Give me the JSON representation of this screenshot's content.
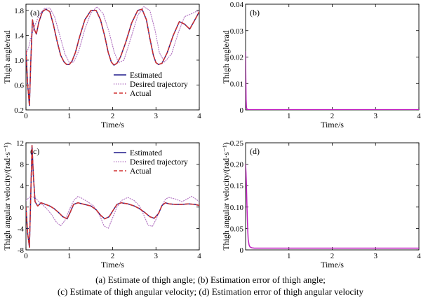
{
  "chart_data": [
    {
      "type": "line",
      "panel_label": "(a)",
      "xlabel": "Time/s",
      "ylabel": "Thigh angle/rad",
      "xlim": [
        0,
        4
      ],
      "ylim": [
        0.2,
        1.9
      ],
      "xticks": [
        "0",
        "1",
        "2",
        "3",
        "4"
      ],
      "yticks": [
        "0.2",
        "0.6",
        "1.0",
        "1.4",
        "1.8"
      ],
      "legend": "lower-right",
      "legend_entries": [
        "Estimated",
        "Desired trajectory",
        "Actual"
      ],
      "series": [
        {
          "name": "Estimated",
          "color": "#1f1a8a",
          "dash": "solid",
          "x": [
            0,
            0.04,
            0.08,
            0.11,
            0.15,
            0.19,
            0.24,
            0.3,
            0.38,
            0.46,
            0.55,
            0.63,
            0.72,
            0.8,
            0.88,
            0.94,
            1.0,
            1.06,
            1.14,
            1.24,
            1.36,
            1.5,
            1.62,
            1.72,
            1.82,
            1.9,
            1.97,
            2.03,
            2.1,
            2.18,
            2.3,
            2.44,
            2.58,
            2.68,
            2.78,
            2.86,
            2.94,
            3.0,
            3.06,
            3.14,
            3.26,
            3.4,
            3.54,
            3.66,
            3.78,
            3.9,
            4.0
          ],
          "y": [
            1.15,
            0.6,
            0.27,
            0.95,
            1.65,
            1.5,
            1.42,
            1.62,
            1.78,
            1.82,
            1.78,
            1.58,
            1.3,
            1.08,
            0.97,
            0.93,
            0.93,
            0.98,
            1.12,
            1.38,
            1.65,
            1.8,
            1.8,
            1.65,
            1.38,
            1.12,
            0.97,
            0.92,
            0.95,
            1.05,
            1.28,
            1.6,
            1.8,
            1.82,
            1.65,
            1.35,
            1.08,
            0.96,
            0.93,
            0.95,
            1.12,
            1.4,
            1.62,
            1.58,
            1.5,
            1.65,
            1.78
          ]
        },
        {
          "name": "Desired trajectory",
          "color": "#b070c0",
          "dash": "dotted",
          "x": [
            0,
            0.06,
            0.12,
            0.2,
            0.3,
            0.42,
            0.55,
            0.66,
            0.78,
            0.9,
            1.0,
            1.1,
            1.22,
            1.36,
            1.5,
            1.64,
            1.78,
            1.92,
            2.04,
            2.14,
            2.26,
            2.42,
            2.58,
            2.72,
            2.86,
            2.98,
            3.08,
            3.2,
            3.36,
            3.52,
            3.66,
            3.8,
            3.92,
            4.0
          ],
          "y": [
            1.1,
            1.2,
            1.38,
            1.55,
            1.72,
            1.83,
            1.84,
            1.7,
            1.4,
            1.1,
            0.96,
            0.97,
            1.15,
            1.5,
            1.76,
            1.86,
            1.75,
            1.45,
            1.12,
            0.96,
            1.0,
            1.35,
            1.72,
            1.86,
            1.8,
            1.48,
            1.12,
            0.97,
            1.1,
            1.45,
            1.7,
            1.74,
            1.78,
            1.8
          ]
        },
        {
          "name": "Actual",
          "color": "#d03030",
          "dash": "dashed",
          "x": [
            0,
            0.04,
            0.08,
            0.11,
            0.15,
            0.19,
            0.24,
            0.3,
            0.38,
            0.46,
            0.55,
            0.63,
            0.72,
            0.8,
            0.88,
            0.94,
            1.0,
            1.06,
            1.14,
            1.24,
            1.36,
            1.5,
            1.62,
            1.72,
            1.82,
            1.9,
            1.97,
            2.03,
            2.1,
            2.18,
            2.3,
            2.44,
            2.58,
            2.68,
            2.78,
            2.86,
            2.94,
            3.0,
            3.06,
            3.14,
            3.26,
            3.4,
            3.54,
            3.66,
            3.78,
            3.9,
            4.0
          ],
          "y": [
            1.15,
            0.6,
            0.27,
            0.95,
            1.65,
            1.5,
            1.42,
            1.62,
            1.78,
            1.82,
            1.78,
            1.58,
            1.3,
            1.08,
            0.97,
            0.93,
            0.93,
            0.98,
            1.12,
            1.38,
            1.65,
            1.8,
            1.8,
            1.65,
            1.38,
            1.12,
            0.97,
            0.92,
            0.95,
            1.05,
            1.28,
            1.6,
            1.8,
            1.82,
            1.65,
            1.35,
            1.08,
            0.96,
            0.93,
            0.95,
            1.12,
            1.4,
            1.62,
            1.58,
            1.5,
            1.65,
            1.78
          ]
        }
      ]
    },
    {
      "type": "line",
      "panel_label": "(b)",
      "xlabel": "Time/s",
      "ylabel": "Thigh angle/rad",
      "xlim": [
        0,
        4
      ],
      "ylim": [
        0,
        0.04
      ],
      "xticks": [
        "1",
        "2",
        "3",
        "4"
      ],
      "yticks": [
        "0",
        "0.01",
        "0.02",
        "0.03",
        "0.04"
      ],
      "series": [
        {
          "color": "#c020c0",
          "dash": "solid",
          "x": [
            0,
            0.006,
            0.012,
            0.02,
            0.04,
            1,
            2,
            3,
            4
          ],
          "y": [
            0.022,
            0.012,
            0.004,
            0.0008,
            0.0001,
            0.0001,
            0.0001,
            0.0001,
            0.0001
          ]
        }
      ]
    },
    {
      "type": "line",
      "panel_label": "(c)",
      "xlabel": "Time/s",
      "ylabel": "Thigh angular velocity/(rad·s⁻¹)",
      "xlim": [
        0,
        4
      ],
      "ylim": [
        -8,
        12
      ],
      "xticks": [
        "0",
        "1",
        "2",
        "3",
        "4"
      ],
      "yticks": [
        "-8",
        "-4",
        "0",
        "4",
        "8",
        "12"
      ],
      "legend": "upper-right",
      "legend_entries": [
        "Estimated",
        "Desired trajectory",
        "Actual"
      ],
      "series": [
        {
          "name": "Estimated",
          "color": "#1f1a8a",
          "dash": "solid",
          "x": [
            0,
            0.04,
            0.08,
            0.11,
            0.14,
            0.17,
            0.21,
            0.27,
            0.35,
            0.45,
            0.55,
            0.65,
            0.75,
            0.85,
            0.95,
            1.02,
            1.1,
            1.2,
            1.35,
            1.5,
            1.62,
            1.72,
            1.82,
            1.92,
            2.02,
            2.1,
            2.2,
            2.35,
            2.5,
            2.62,
            2.74,
            2.86,
            2.96,
            3.06,
            3.14,
            3.22,
            3.3,
            3.45,
            3.6,
            3.75,
            3.9,
            4.0
          ],
          "y": [
            0,
            -5,
            -7.5,
            2,
            11.5,
            6,
            1,
            0.2,
            0.8,
            0.5,
            0.2,
            -0.3,
            -1,
            -1.8,
            -2.2,
            -1,
            0.5,
            0.8,
            0.5,
            0.2,
            -0.5,
            -1.5,
            -2.2,
            -1.8,
            -0.5,
            0.5,
            0.8,
            0.6,
            0.2,
            -0.3,
            -1,
            -1.8,
            -2.1,
            -1.2,
            0.3,
            0.8,
            0.6,
            0.5,
            0.5,
            0.6,
            0.5,
            0.3
          ]
        },
        {
          "name": "Desired trajectory",
          "color": "#b070c0",
          "dash": "dotted",
          "x": [
            0,
            0.1,
            0.2,
            0.3,
            0.4,
            0.5,
            0.6,
            0.7,
            0.8,
            0.9,
            1.0,
            1.1,
            1.2,
            1.3,
            1.42,
            1.55,
            1.7,
            1.8,
            1.9,
            2.0,
            2.1,
            2.2,
            2.35,
            2.5,
            2.62,
            2.72,
            2.82,
            2.92,
            3.02,
            3.12,
            3.22,
            3.3,
            3.45,
            3.6,
            3.72,
            3.82,
            3.92,
            4.0
          ],
          "y": [
            1.2,
            2,
            1.8,
            1,
            0.3,
            -0.5,
            -1.5,
            -2.8,
            -3.5,
            -2.5,
            -0.5,
            1.2,
            2,
            1.6,
            1,
            0.3,
            -1.5,
            -3.5,
            -4,
            -2,
            0,
            1.2,
            1.8,
            1.2,
            0.2,
            -1.5,
            -3.4,
            -3.6,
            -2,
            0,
            1.5,
            1.8,
            1.5,
            1,
            1.5,
            2,
            1.5,
            1
          ]
        },
        {
          "name": "Actual",
          "color": "#d03030",
          "dash": "dashed",
          "x": [
            0,
            0.04,
            0.08,
            0.11,
            0.14,
            0.17,
            0.21,
            0.27,
            0.35,
            0.45,
            0.55,
            0.65,
            0.75,
            0.85,
            0.95,
            1.02,
            1.1,
            1.2,
            1.35,
            1.5,
            1.62,
            1.72,
            1.82,
            1.92,
            2.02,
            2.1,
            2.2,
            2.35,
            2.5,
            2.62,
            2.74,
            2.86,
            2.96,
            3.06,
            3.14,
            3.22,
            3.3,
            3.45,
            3.6,
            3.75,
            3.9,
            4.0
          ],
          "y": [
            0,
            -5,
            -7.5,
            2,
            11.5,
            6,
            1,
            0.2,
            0.8,
            0.5,
            0.2,
            -0.3,
            -1,
            -1.8,
            -2.2,
            -1,
            0.5,
            0.8,
            0.5,
            0.2,
            -0.5,
            -1.5,
            -2.2,
            -1.8,
            -0.5,
            0.5,
            0.8,
            0.6,
            0.2,
            -0.3,
            -1,
            -1.8,
            -2.1,
            -1.2,
            0.3,
            0.8,
            0.6,
            0.5,
            0.5,
            0.6,
            0.5,
            0.3
          ]
        }
      ]
    },
    {
      "type": "line",
      "panel_label": "(d)",
      "xlabel": "Time/s",
      "ylabel": "Thigh angular velocity/(rad·s⁻¹)",
      "xlim": [
        0,
        4
      ],
      "ylim": [
        0,
        0.25
      ],
      "xticks": [
        "1",
        "2",
        "3",
        "4"
      ],
      "yticks": [
        "0",
        "0.05",
        "0.10",
        "0.15",
        "0.20",
        "0.25"
      ],
      "series": [
        {
          "color": "#c020c0",
          "dash": "solid",
          "x": [
            0,
            0.01,
            0.02,
            0.03,
            0.04,
            0.05,
            0.06,
            0.08,
            0.1,
            0.14,
            0.2,
            0.5,
            1,
            2,
            3,
            4
          ],
          "y": [
            0.2,
            0.18,
            0.15,
            0.11,
            0.075,
            0.045,
            0.025,
            0.012,
            0.007,
            0.005,
            0.004,
            0.004,
            0.004,
            0.004,
            0.004,
            0.004
          ]
        }
      ]
    }
  ],
  "caption": {
    "line1": "(a) Estimate of thigh angle; (b) Estimation error of thigh angle;",
    "line2": "(c) Estimate of thigh angular velocity; (d) Estimation error of thigh angular velocity"
  }
}
